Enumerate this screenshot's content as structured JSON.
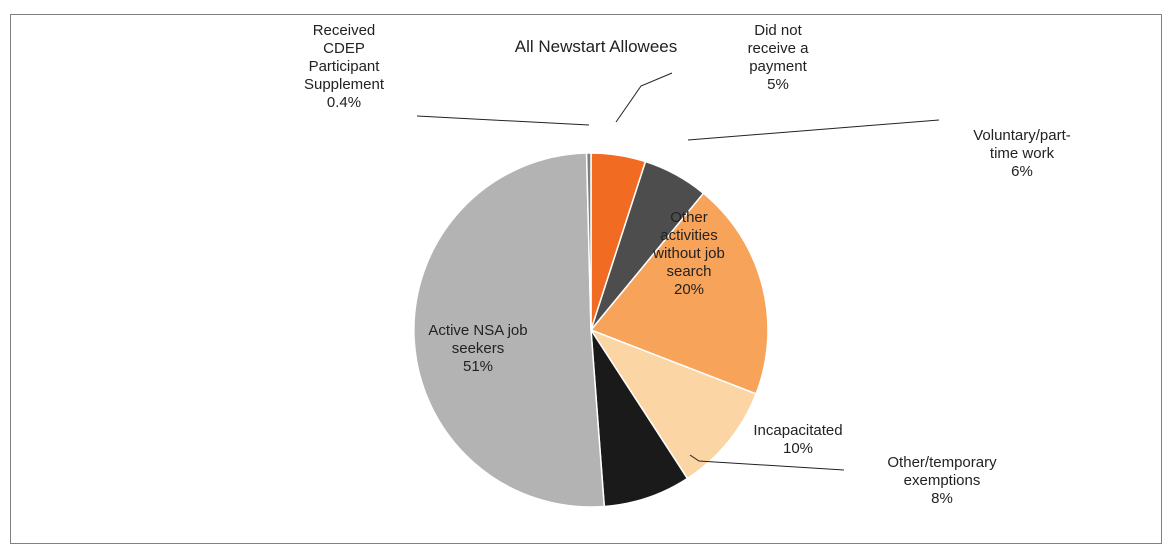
{
  "chart_data": {
    "type": "pie",
    "title": "All Newstart Allowees",
    "slices": [
      {
        "label_lines": [
          "Did not",
          "receive a",
          "payment"
        ],
        "pct_label": "5%",
        "value": 5,
        "color": "#F26B22"
      },
      {
        "label_lines": [
          "Voluntary/part-",
          "time work"
        ],
        "pct_label": "6%",
        "value": 6,
        "color": "#4D4D4D"
      },
      {
        "label_lines": [
          "Other",
          "activities",
          "without job",
          "search"
        ],
        "pct_label": "20%",
        "value": 20,
        "color": "#F8A35A"
      },
      {
        "label_lines": [
          "Incapacitated"
        ],
        "pct_label": "10%",
        "value": 10,
        "color": "#FCD5A5"
      },
      {
        "label_lines": [
          "Other/temporary",
          "exemptions"
        ],
        "pct_label": "8%",
        "value": 8,
        "color": "#1A1A1A"
      },
      {
        "label_lines": [
          "Active NSA job",
          "seekers"
        ],
        "pct_label": "51%",
        "value": 51,
        "color": "#B3B3B3"
      },
      {
        "label_lines": [
          "Received",
          "CDEP",
          "Participant",
          "Supplement"
        ],
        "pct_label": "0.4%",
        "value": 0.4,
        "color": "#7F7F7F"
      }
    ]
  }
}
